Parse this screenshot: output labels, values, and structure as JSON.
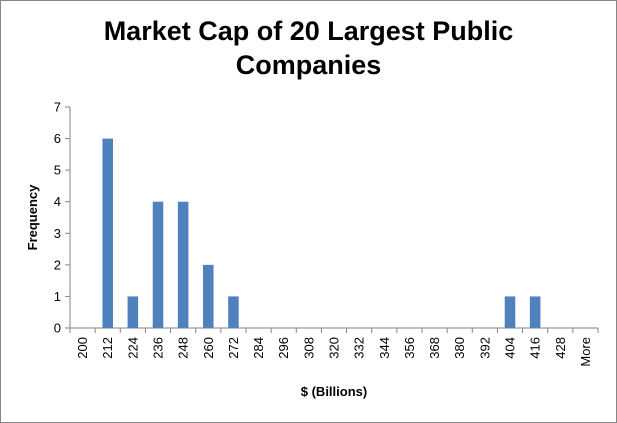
{
  "chart_data": {
    "type": "bar",
    "title_lines": [
      "Market Cap of 20 Largest Public",
      "Companies"
    ],
    "xlabel": "$ (Billions)",
    "ylabel": "Frequency",
    "ylim": [
      0,
      7
    ],
    "yticks": [
      0,
      1,
      2,
      3,
      4,
      5,
      6,
      7
    ],
    "categories": [
      "200",
      "212",
      "224",
      "236",
      "248",
      "260",
      "272",
      "284",
      "296",
      "308",
      "320",
      "332",
      "344",
      "356",
      "368",
      "380",
      "392",
      "404",
      "416",
      "428",
      "More"
    ],
    "values": [
      0,
      6,
      1,
      4,
      4,
      2,
      1,
      0,
      0,
      0,
      0,
      0,
      0,
      0,
      0,
      0,
      0,
      1,
      1,
      0,
      0
    ],
    "bar_color": "#4f81bd",
    "grid": false,
    "legend": "none"
  }
}
